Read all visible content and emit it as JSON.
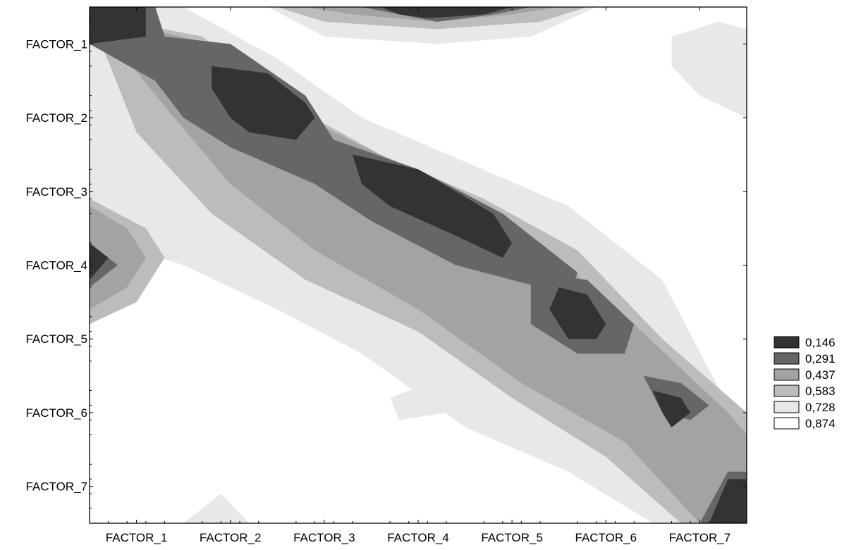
{
  "chart_data": {
    "type": "heatmap",
    "subtype": "contour",
    "title": "",
    "xlabel": "",
    "ylabel": "",
    "x_categories": [
      "FACTOR_1",
      "FACTOR_2",
      "FACTOR_3",
      "FACTOR_4",
      "FACTOR_5",
      "FACTOR_6",
      "FACTOR_7"
    ],
    "y_categories": [
      "FACTOR_1",
      "FACTOR_2",
      "FACTOR_3",
      "FACTOR_4",
      "FACTOR_5",
      "FACTOR_6",
      "FACTOR_7"
    ],
    "xlim": [
      0.5,
      7.5
    ],
    "ylim": [
      0.5,
      7.5
    ],
    "legend_position": "right",
    "legend": [
      {
        "label": "0,146",
        "value": 0.146,
        "color": "#333333"
      },
      {
        "label": "0,291",
        "value": 0.291,
        "color": "#666666"
      },
      {
        "label": "0,437",
        "value": 0.437,
        "color": "#a3a3a3"
      },
      {
        "label": "0,583",
        "value": 0.583,
        "color": "#bcbcbc"
      },
      {
        "label": "0,728",
        "value": 0.728,
        "color": "#e8e8e8"
      },
      {
        "label": "0,874",
        "value": 0.874,
        "color": "#ffffff"
      }
    ],
    "contour_regions": [
      {
        "level": 0.728,
        "polygons": [
          [
            [
              0.5,
              0.5
            ],
            [
              1.5,
              0.5
            ],
            [
              2.5,
              1.2
            ],
            [
              3.4,
              2.0
            ],
            [
              4.5,
              2.6
            ],
            [
              5.6,
              3.2
            ],
            [
              6.6,
              4.2
            ],
            [
              7.5,
              6.4
            ],
            [
              7.5,
              7.5
            ],
            [
              6.5,
              7.5
            ],
            [
              5.6,
              6.8
            ],
            [
              4.5,
              6.2
            ],
            [
              3.4,
              5.2
            ],
            [
              2.5,
              4.6
            ],
            [
              1.5,
              4.0
            ],
            [
              0.5,
              3.6
            ]
          ],
          [
            [
              2.4,
              0.5
            ],
            [
              5.9,
              0.5
            ],
            [
              5.2,
              0.9
            ],
            [
              4.2,
              1.0
            ],
            [
              3.0,
              0.9
            ]
          ],
          [
            [
              6.7,
              0.9
            ],
            [
              7.2,
              0.7
            ],
            [
              7.5,
              0.8
            ],
            [
              7.5,
              2.0
            ],
            [
              7.0,
              1.7
            ],
            [
              6.7,
              1.3
            ]
          ],
          [
            [
              5.2,
              4.1
            ],
            [
              5.7,
              4.3
            ],
            [
              5.5,
              4.6
            ],
            [
              5.1,
              4.5
            ]
          ],
          [
            [
              3.7,
              5.8
            ],
            [
              4.1,
              5.6
            ],
            [
              4.3,
              6.0
            ],
            [
              3.8,
              6.1
            ]
          ],
          [
            [
              1.5,
              7.5
            ],
            [
              1.9,
              7.1
            ],
            [
              2.2,
              7.5
            ]
          ]
        ]
      },
      {
        "level": 0.583,
        "polygons": [
          [
            [
              0.5,
              0.6
            ],
            [
              1.7,
              0.9
            ],
            [
              2.6,
              1.8
            ],
            [
              3.6,
              2.5
            ],
            [
              4.7,
              3.1
            ],
            [
              5.7,
              3.8
            ],
            [
              6.6,
              5.0
            ],
            [
              7.5,
              6.0
            ],
            [
              7.5,
              7.5
            ],
            [
              6.8,
              7.5
            ],
            [
              6.0,
              6.6
            ],
            [
              5.0,
              5.8
            ],
            [
              4.0,
              4.9
            ],
            [
              2.8,
              4.2
            ],
            [
              1.8,
              3.3
            ],
            [
              1.0,
              2.2
            ]
          ],
          [
            [
              2.5,
              0.5
            ],
            [
              5.8,
              0.5
            ],
            [
              5.3,
              0.7
            ],
            [
              4.2,
              0.8
            ],
            [
              3.0,
              0.7
            ]
          ],
          [
            [
              0.5,
              3.1
            ],
            [
              1.1,
              3.5
            ],
            [
              1.3,
              3.9
            ],
            [
              1.0,
              4.5
            ],
            [
              0.5,
              4.8
            ]
          ]
        ]
      },
      {
        "level": 0.437,
        "polygons": [
          [
            [
              0.5,
              0.6
            ],
            [
              1.8,
              1.0
            ],
            [
              2.8,
              2.0
            ],
            [
              3.9,
              2.7
            ],
            [
              5.2,
              3.6
            ],
            [
              6.3,
              4.8
            ],
            [
              7.3,
              6.0
            ],
            [
              7.5,
              6.3
            ],
            [
              7.5,
              7.5
            ],
            [
              7.0,
              7.5
            ],
            [
              6.2,
              6.4
            ],
            [
              5.1,
              5.6
            ],
            [
              4.0,
              4.6
            ],
            [
              2.9,
              3.8
            ],
            [
              2.0,
              2.9
            ],
            [
              1.4,
              2.0
            ]
          ],
          [
            [
              2.8,
              0.5
            ],
            [
              5.5,
              0.5
            ],
            [
              5.0,
              0.6
            ],
            [
              4.2,
              0.7
            ],
            [
              3.3,
              0.6
            ]
          ],
          [
            [
              0.5,
              3.2
            ],
            [
              0.9,
              3.5
            ],
            [
              1.1,
              3.9
            ],
            [
              0.9,
              4.3
            ],
            [
              0.5,
              4.6
            ]
          ]
        ]
      },
      {
        "level": 0.291,
        "polygons": [
          [
            [
              0.5,
              0.5
            ],
            [
              1.2,
              0.5
            ],
            [
              1.3,
              0.9
            ],
            [
              2.0,
              1.0
            ],
            [
              2.8,
              1.7
            ],
            [
              3.1,
              2.3
            ],
            [
              4.0,
              2.7
            ],
            [
              4.9,
              3.3
            ],
            [
              5.7,
              4.1
            ],
            [
              5.6,
              4.4
            ],
            [
              4.4,
              4.0
            ],
            [
              3.5,
              3.4
            ],
            [
              2.9,
              2.9
            ],
            [
              2.0,
              2.4
            ],
            [
              1.5,
              2.0
            ],
            [
              1.2,
              1.5
            ],
            [
              0.5,
              1.0
            ]
          ],
          [
            [
              3.4,
              0.5
            ],
            [
              5.2,
              0.5
            ],
            [
              4.8,
              0.6
            ],
            [
              4.2,
              0.7
            ],
            [
              3.8,
              0.6
            ]
          ],
          [
            [
              0.5,
              3.7
            ],
            [
              0.8,
              4.0
            ],
            [
              0.5,
              4.3
            ]
          ],
          [
            [
              5.2,
              4.1
            ],
            [
              5.8,
              4.2
            ],
            [
              6.3,
              4.8
            ],
            [
              6.2,
              5.2
            ],
            [
              5.7,
              5.2
            ],
            [
              5.2,
              4.8
            ]
          ],
          [
            [
              6.4,
              5.5
            ],
            [
              6.8,
              5.6
            ],
            [
              7.1,
              5.9
            ],
            [
              6.9,
              6.1
            ],
            [
              6.6,
              6.0
            ]
          ],
          [
            [
              7.0,
              7.5
            ],
            [
              7.3,
              6.8
            ],
            [
              7.5,
              6.8
            ],
            [
              7.5,
              7.5
            ]
          ]
        ]
      },
      {
        "level": 0.146,
        "polygons": [
          [
            [
              0.5,
              0.5
            ],
            [
              1.1,
              0.5
            ],
            [
              1.1,
              0.9
            ],
            [
              0.5,
              1.0
            ]
          ],
          [
            [
              3.6,
              0.5
            ],
            [
              5.0,
              0.5
            ],
            [
              4.7,
              0.6
            ],
            [
              4.1,
              0.65
            ],
            [
              3.8,
              0.6
            ]
          ],
          [
            [
              1.8,
              1.3
            ],
            [
              2.4,
              1.4
            ],
            [
              2.8,
              1.8
            ],
            [
              2.9,
              2.0
            ],
            [
              2.7,
              2.3
            ],
            [
              2.2,
              2.2
            ],
            [
              2.0,
              2.0
            ],
            [
              1.8,
              1.6
            ]
          ],
          [
            [
              3.3,
              2.5
            ],
            [
              4.0,
              2.7
            ],
            [
              4.8,
              3.3
            ],
            [
              5.0,
              3.7
            ],
            [
              4.9,
              3.9
            ],
            [
              4.4,
              3.6
            ],
            [
              3.7,
              3.2
            ],
            [
              3.4,
              2.9
            ]
          ],
          [
            [
              5.5,
              4.3
            ],
            [
              5.8,
              4.4
            ],
            [
              6.0,
              4.8
            ],
            [
              5.9,
              5.0
            ],
            [
              5.6,
              5.0
            ],
            [
              5.4,
              4.6
            ]
          ],
          [
            [
              6.5,
              5.7
            ],
            [
              6.8,
              5.8
            ],
            [
              6.9,
              6.0
            ],
            [
              6.7,
              6.2
            ],
            [
              6.6,
              6.0
            ]
          ],
          [
            [
              0.5,
              3.7
            ],
            [
              0.7,
              3.9
            ],
            [
              0.5,
              4.2
            ]
          ],
          [
            [
              7.1,
              7.5
            ],
            [
              7.3,
              6.9
            ],
            [
              7.5,
              6.9
            ],
            [
              7.5,
              7.5
            ]
          ]
        ]
      }
    ]
  }
}
